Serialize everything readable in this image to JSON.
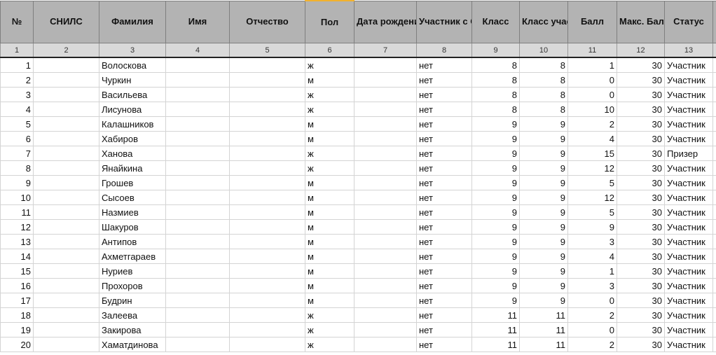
{
  "headers": [
    "№",
    "СНИЛС",
    "Фамилия",
    "Имя",
    "Отчество",
    "Пол",
    "Дата рождения",
    "Участник с ОВЗ",
    "Класс",
    "Класс участия",
    "Балл",
    "Макс. Балл",
    "Статус",
    ""
  ],
  "col_numbers": [
    "1",
    "2",
    "3",
    "4",
    "5",
    "6",
    "7",
    "8",
    "9",
    "10",
    "11",
    "12",
    "13",
    ""
  ],
  "rows": [
    [
      "1",
      "",
      "Волоскова",
      "",
      "",
      "ж",
      "",
      "нет",
      "8",
      "8",
      "1",
      "30",
      "Участник"
    ],
    [
      "2",
      "",
      "Чуркин",
      "",
      "",
      "м",
      "",
      "нет",
      "8",
      "8",
      "0",
      "30",
      "Участник"
    ],
    [
      "3",
      "",
      "Васильева",
      "",
      "",
      "ж",
      "",
      "нет",
      "8",
      "8",
      "0",
      "30",
      "Участник"
    ],
    [
      "4",
      "",
      "Лисунова",
      "",
      "",
      "ж",
      "",
      "нет",
      "8",
      "8",
      "10",
      "30",
      "Участник"
    ],
    [
      "5",
      "",
      "Калашников",
      "",
      "",
      "м",
      "",
      "нет",
      "9",
      "9",
      "2",
      "30",
      "Участник"
    ],
    [
      "6",
      "",
      "Хабиров",
      "",
      "",
      "м",
      "",
      "нет",
      "9",
      "9",
      "4",
      "30",
      "Участник"
    ],
    [
      "7",
      "",
      "Ханова",
      "",
      "",
      "ж",
      "",
      "нет",
      "9",
      "9",
      "15",
      "30",
      "Призер"
    ],
    [
      "8",
      "",
      "Янайкина",
      "",
      "",
      "ж",
      "",
      "нет",
      "9",
      "9",
      "12",
      "30",
      "Участник"
    ],
    [
      "9",
      "",
      "Грошев",
      "",
      "",
      "м",
      "",
      "нет",
      "9",
      "9",
      "5",
      "30",
      "Участник"
    ],
    [
      "10",
      "",
      "Сысоев",
      "",
      "",
      "м",
      "",
      "нет",
      "9",
      "9",
      "12",
      "30",
      "Участник"
    ],
    [
      "11",
      "",
      "Назмиев",
      "",
      "",
      "м",
      "",
      "нет",
      "9",
      "9",
      "5",
      "30",
      "Участник"
    ],
    [
      "12",
      "",
      "Шакуров",
      "",
      "",
      "м",
      "",
      "нет",
      "9",
      "9",
      "9",
      "30",
      "Участник"
    ],
    [
      "13",
      "",
      "Антипов",
      "",
      "",
      "м",
      "",
      "нет",
      "9",
      "9",
      "3",
      "30",
      "Участник"
    ],
    [
      "14",
      "",
      "Ахметгараев",
      "",
      "",
      "м",
      "",
      "нет",
      "9",
      "9",
      "4",
      "30",
      "Участник"
    ],
    [
      "15",
      "",
      "Нуриев",
      "",
      "",
      "м",
      "",
      "нет",
      "9",
      "9",
      "1",
      "30",
      "Участник"
    ],
    [
      "16",
      "",
      "Прохоров",
      "",
      "",
      "м",
      "",
      "нет",
      "9",
      "9",
      "3",
      "30",
      "Участник"
    ],
    [
      "17",
      "",
      "Будрин",
      "",
      "",
      "м",
      "",
      "нет",
      "9",
      "9",
      "0",
      "30",
      "Участник"
    ],
    [
      "18",
      "",
      "Залеева",
      "",
      "",
      "ж",
      "",
      "нет",
      "11",
      "11",
      "2",
      "30",
      "Участник"
    ],
    [
      "19",
      "",
      "Закирова",
      "",
      "",
      "ж",
      "",
      "нет",
      "11",
      "11",
      "0",
      "30",
      "Участник"
    ],
    [
      "20",
      "",
      "Хаматдинова",
      "",
      "",
      "ж",
      "",
      "нет",
      "11",
      "11",
      "2",
      "30",
      "Участник"
    ]
  ]
}
